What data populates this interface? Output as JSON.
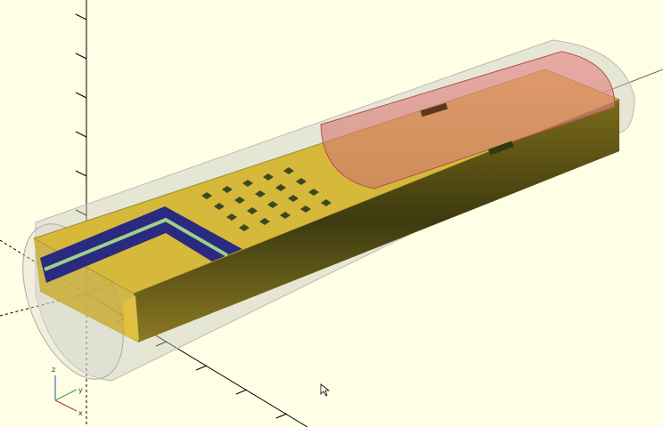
{
  "axes": {
    "labels": [
      "z",
      "y",
      "x"
    ]
  }
}
